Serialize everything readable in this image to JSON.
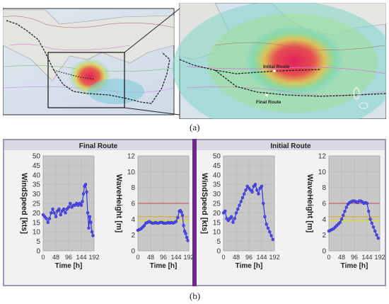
{
  "maps": {
    "overview_map": "world map with ship route and storm region",
    "zoom_labels": {
      "initial_route": "Initial Route",
      "final_route": "Final Route"
    }
  },
  "captions": {
    "a": "(a)",
    "b": "(b)"
  },
  "panels": [
    {
      "title": "Final Route"
    },
    {
      "title": "Initial Route"
    }
  ],
  "colors": {
    "panel_divider": "#6a2a8a",
    "plot_bg": "#c8c8c8",
    "series": "#3333dd",
    "ref_red": "#cc4444",
    "ref_orange": "#e0a020",
    "ref_yellow": "#e6e000"
  },
  "chart_data": [
    {
      "type": "line",
      "panel": "Final Route",
      "xlabel": "Time [h]",
      "ylabel": "WindSpeed [kts]",
      "xticks": [
        0,
        48,
        96,
        144,
        192
      ],
      "yticks": [
        0,
        5,
        10,
        15,
        20,
        25,
        30,
        35,
        40,
        45,
        50
      ],
      "xlim": [
        0,
        192
      ],
      "ylim": [
        0,
        50
      ],
      "x": [
        0,
        6,
        12,
        18,
        24,
        30,
        36,
        42,
        48,
        54,
        60,
        66,
        72,
        78,
        84,
        90,
        96,
        102,
        108,
        114,
        120,
        126,
        132,
        138,
        144,
        148,
        152,
        156,
        160,
        164,
        168,
        172,
        176,
        180,
        184,
        188
      ],
      "values": [
        19,
        18,
        17,
        15,
        17,
        20,
        22,
        20,
        18,
        21,
        22,
        19,
        21,
        22,
        20,
        22,
        23,
        25,
        23,
        24,
        24,
        25,
        24,
        25,
        24,
        26,
        30,
        34,
        35,
        31,
        20,
        12,
        18,
        15,
        10,
        8
      ]
    },
    {
      "type": "line",
      "panel": "Final Route",
      "xlabel": "Time [h]",
      "ylabel": "WaveHeight [m]",
      "xticks": [
        0,
        48,
        96,
        144,
        192
      ],
      "yticks": [
        0,
        2,
        4,
        6,
        8,
        10,
        12
      ],
      "xlim": [
        0,
        192
      ],
      "ylim": [
        0,
        12
      ],
      "reference_lines": [
        6,
        4.3,
        3.8
      ],
      "x": [
        0,
        6,
        12,
        18,
        24,
        30,
        36,
        42,
        48,
        54,
        60,
        66,
        72,
        78,
        84,
        90,
        96,
        102,
        108,
        114,
        120,
        126,
        132,
        138,
        144,
        150,
        156,
        160,
        164,
        168,
        172,
        176,
        180,
        184,
        188
      ],
      "values": [
        2.6,
        2.7,
        2.8,
        3.0,
        3.2,
        3.5,
        3.6,
        3.7,
        3.6,
        3.5,
        3.5,
        3.6,
        3.5,
        3.5,
        3.6,
        3.6,
        3.5,
        3.5,
        3.5,
        3.6,
        3.5,
        3.6,
        3.5,
        3.6,
        3.7,
        4.2,
        5.0,
        5.1,
        4.9,
        4.5,
        3.2,
        2.5,
        2.2,
        1.7,
        1.3
      ]
    },
    {
      "type": "line",
      "panel": "Initial Route",
      "xlabel": "Time [h]",
      "ylabel": "WindSpeed [kts]",
      "xticks": [
        0,
        48,
        96,
        144,
        192
      ],
      "yticks": [
        0,
        5,
        10,
        15,
        20,
        25,
        30,
        35,
        40,
        45,
        50
      ],
      "xlim": [
        0,
        192
      ],
      "ylim": [
        0,
        50
      ],
      "x": [
        0,
        6,
        12,
        18,
        24,
        30,
        36,
        42,
        48,
        54,
        60,
        66,
        72,
        78,
        84,
        90,
        96,
        102,
        108,
        114,
        120,
        126,
        132,
        138,
        144,
        150,
        156,
        162,
        168,
        174,
        180,
        186
      ],
      "values": [
        20,
        21,
        17,
        16,
        17,
        18,
        15,
        17,
        20,
        22,
        24,
        26,
        28,
        30,
        32,
        34,
        33,
        32,
        31,
        34,
        35,
        32,
        30,
        33,
        34,
        25,
        18,
        14,
        12,
        10,
        8,
        6
      ]
    },
    {
      "type": "line",
      "panel": "Initial Route",
      "xlabel": "Time [h]",
      "ylabel": "WaveHeight [m]",
      "xticks": [
        0,
        48,
        96,
        144,
        192
      ],
      "yticks": [
        0,
        2,
        4,
        6,
        8,
        10,
        12
      ],
      "xlim": [
        0,
        192
      ],
      "ylim": [
        0,
        12
      ],
      "reference_lines": [
        6,
        4.3,
        3.8
      ],
      "x": [
        0,
        6,
        12,
        18,
        24,
        30,
        36,
        42,
        48,
        54,
        60,
        66,
        72,
        78,
        84,
        90,
        96,
        102,
        108,
        114,
        120,
        126,
        132,
        138,
        144,
        150,
        156,
        162,
        168,
        174,
        180,
        186
      ],
      "values": [
        2.5,
        2.6,
        2.7,
        2.8,
        3.0,
        3.2,
        3.4,
        3.6,
        4.0,
        4.5,
        5.0,
        5.5,
        5.9,
        6.1,
        6.2,
        6.3,
        6.3,
        6.2,
        6.1,
        6.3,
        6.3,
        6.2,
        6.0,
        6.1,
        6.0,
        5.0,
        4.0,
        3.5,
        3.0,
        2.5,
        2.0,
        1.6
      ]
    }
  ]
}
